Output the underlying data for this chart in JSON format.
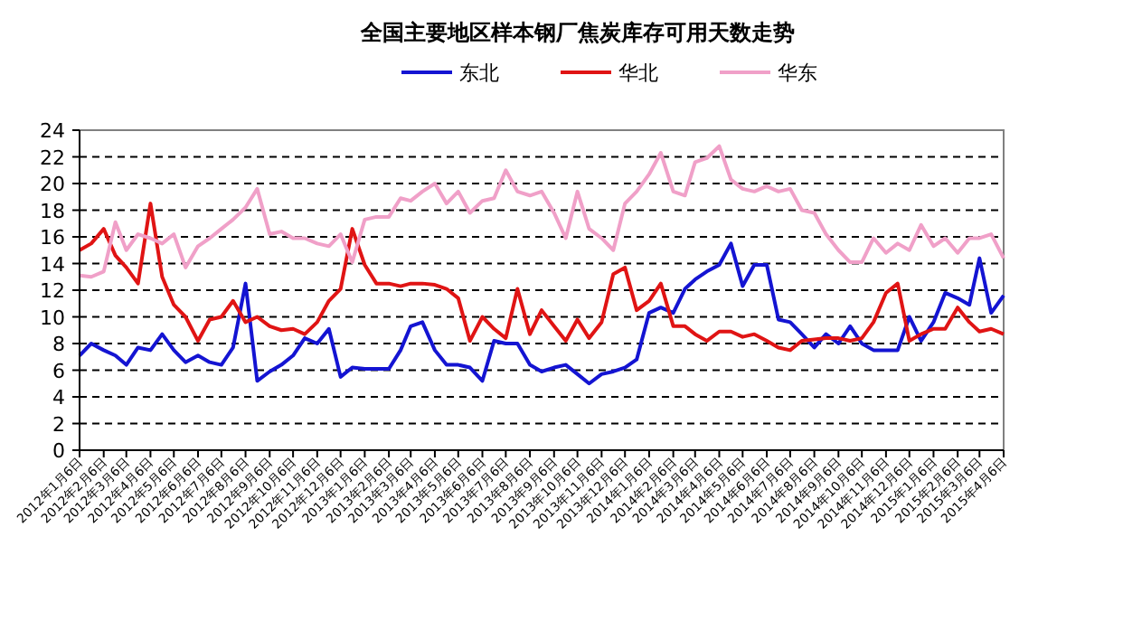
{
  "chart_data": {
    "type": "line",
    "title": "全国主要地区样本钢厂焦炭库存可用天数走势",
    "x": [
      "2012-01-06",
      "2012-01-21",
      "2012-02-06",
      "2012-02-21",
      "2012-03-06",
      "2012-03-21",
      "2012-04-06",
      "2012-04-21",
      "2012-05-06",
      "2012-05-21",
      "2012-06-06",
      "2012-06-21",
      "2012-07-06",
      "2012-07-21",
      "2012-08-06",
      "2012-08-21",
      "2012-09-06",
      "2012-09-21",
      "2012-10-06",
      "2012-10-21",
      "2012-11-06",
      "2012-11-21",
      "2012-12-06",
      "2012-12-21",
      "2013-01-06",
      "2013-01-21",
      "2013-02-06",
      "2013-02-21",
      "2013-03-06",
      "2013-03-21",
      "2013-04-06",
      "2013-04-21",
      "2013-05-06",
      "2013-05-21",
      "2013-06-06",
      "2013-06-21",
      "2013-07-06",
      "2013-07-21",
      "2013-08-06",
      "2013-08-21",
      "2013-09-06",
      "2013-09-21",
      "2013-10-06",
      "2013-10-21",
      "2013-11-06",
      "2013-11-21",
      "2013-12-06",
      "2013-12-21",
      "2014-01-06",
      "2014-01-21",
      "2014-02-06",
      "2014-02-21",
      "2014-03-06",
      "2014-03-21",
      "2014-04-06",
      "2014-04-21",
      "2014-05-06",
      "2014-05-21",
      "2014-06-06",
      "2014-06-21",
      "2014-07-06",
      "2014-07-21",
      "2014-08-06",
      "2014-08-21",
      "2014-09-06",
      "2014-09-21",
      "2014-10-06",
      "2014-10-21",
      "2014-11-06",
      "2014-11-21",
      "2014-12-06",
      "2014-12-21",
      "2015-01-06",
      "2015-01-21",
      "2015-02-06",
      "2015-02-21",
      "2015-03-06",
      "2015-03-21",
      "2015-04-06"
    ],
    "series": [
      {
        "name": "东北",
        "color": "#1414d2",
        "values": [
          7.1,
          8.0,
          7.5,
          7.1,
          6.4,
          7.7,
          7.5,
          8.7,
          7.5,
          6.6,
          7.1,
          6.6,
          6.4,
          7.7,
          12.5,
          5.2,
          5.9,
          6.4,
          7.1,
          8.4,
          8.0,
          9.1,
          5.5,
          6.2,
          6.1,
          6.1,
          6.1,
          7.5,
          9.3,
          9.6,
          7.5,
          6.4,
          6.4,
          6.2,
          5.2,
          8.2,
          8.0,
          8.0,
          6.4,
          5.9,
          6.2,
          6.4,
          5.7,
          5.0,
          5.7,
          5.9,
          6.2,
          6.8,
          10.3,
          10.7,
          10.3,
          12.1,
          12.8,
          13.4,
          13.9,
          15.5,
          12.3,
          13.9,
          13.9,
          9.8,
          9.6,
          8.7,
          7.7,
          8.7,
          8.0,
          9.3,
          8.0,
          7.5,
          7.5,
          7.5,
          10.0,
          8.2,
          9.6,
          11.8,
          11.4,
          10.9,
          14.4,
          10.3,
          11.6
        ]
      },
      {
        "name": "华北",
        "color": "#e01414",
        "values": [
          15.0,
          15.5,
          16.6,
          14.6,
          13.7,
          12.5,
          18.5,
          13.0,
          10.9,
          10.0,
          8.2,
          9.8,
          10.0,
          11.2,
          9.6,
          10.0,
          9.3,
          9.0,
          9.1,
          8.7,
          9.6,
          11.2,
          12.1,
          16.6,
          13.9,
          12.5,
          12.5,
          12.3,
          12.5,
          12.5,
          12.4,
          12.1,
          11.4,
          8.2,
          10.0,
          9.1,
          8.4,
          12.1,
          8.7,
          10.5,
          9.3,
          8.2,
          9.8,
          8.4,
          9.6,
          13.2,
          13.7,
          10.5,
          11.2,
          12.5,
          9.3,
          9.3,
          8.7,
          8.2,
          8.9,
          8.9,
          8.5,
          8.7,
          8.2,
          7.7,
          7.5,
          8.2,
          8.3,
          8.4,
          8.4,
          8.2,
          8.4,
          9.6,
          11.8,
          12.5,
          8.2,
          8.7,
          9.1,
          9.1,
          10.7,
          9.6,
          8.9,
          9.1,
          8.7
        ]
      },
      {
        "name": "华东",
        "color": "#f0a0c8",
        "values": [
          13.1,
          13.0,
          13.4,
          17.1,
          15.0,
          16.2,
          15.9,
          15.5,
          16.2,
          13.7,
          15.3,
          15.9,
          16.6,
          17.3,
          18.2,
          19.6,
          16.2,
          16.4,
          15.9,
          15.9,
          15.5,
          15.3,
          16.2,
          14.1,
          17.3,
          17.5,
          17.5,
          18.9,
          18.7,
          19.4,
          20.0,
          18.5,
          19.4,
          17.8,
          18.7,
          18.9,
          21.0,
          19.4,
          19.1,
          19.4,
          17.8,
          15.9,
          19.4,
          16.6,
          15.9,
          15.0,
          18.5,
          19.4,
          20.7,
          22.3,
          19.4,
          19.1,
          21.6,
          21.9,
          22.8,
          20.3,
          19.6,
          19.4,
          19.8,
          19.4,
          19.6,
          18.0,
          17.8,
          16.2,
          15.0,
          14.1,
          14.1,
          15.9,
          14.8,
          15.5,
          15.0,
          16.9,
          15.3,
          15.9,
          14.8,
          15.9,
          15.9,
          16.2,
          14.4
        ]
      }
    ],
    "xlim": [
      "2012-01-06",
      "2015-04-06"
    ],
    "xticks": [
      {
        "value": "2012-01-06",
        "label": "2012年1月6日"
      },
      {
        "value": "2012-02-06",
        "label": "2012年2月6日"
      },
      {
        "value": "2012-03-06",
        "label": "2012年3月6日"
      },
      {
        "value": "2012-04-06",
        "label": "2012年4月6日"
      },
      {
        "value": "2012-05-06",
        "label": "2012年5月6日"
      },
      {
        "value": "2012-06-06",
        "label": "2012年6月6日"
      },
      {
        "value": "2012-07-06",
        "label": "2012年7月6日"
      },
      {
        "value": "2012-08-06",
        "label": "2012年8月6日"
      },
      {
        "value": "2012-09-06",
        "label": "2012年9月6日"
      },
      {
        "value": "2012-10-06",
        "label": "2012年10月6日"
      },
      {
        "value": "2012-11-06",
        "label": "2012年11月6日"
      },
      {
        "value": "2012-12-06",
        "label": "2012年12月6日"
      },
      {
        "value": "2013-01-06",
        "label": "2013年1月6日"
      },
      {
        "value": "2013-02-06",
        "label": "2013年2月6日"
      },
      {
        "value": "2013-03-06",
        "label": "2013年3月6日"
      },
      {
        "value": "2013-04-06",
        "label": "2013年4月6日"
      },
      {
        "value": "2013-05-06",
        "label": "2013年5月6日"
      },
      {
        "value": "2013-06-06",
        "label": "2013年6月6日"
      },
      {
        "value": "2013-07-06",
        "label": "2013年7月6日"
      },
      {
        "value": "2013-08-06",
        "label": "2013年8月6日"
      },
      {
        "value": "2013-09-06",
        "label": "2013年9月6日"
      },
      {
        "value": "2013-10-06",
        "label": "2013年10月6日"
      },
      {
        "value": "2013-11-06",
        "label": "2013年11月6日"
      },
      {
        "value": "2013-12-06",
        "label": "2013年12月6日"
      },
      {
        "value": "2014-01-06",
        "label": "2014年1月6日"
      },
      {
        "value": "2014-02-06",
        "label": "2014年2月6日"
      },
      {
        "value": "2014-03-06",
        "label": "2014年3月6日"
      },
      {
        "value": "2014-04-06",
        "label": "2014年4月6日"
      },
      {
        "value": "2014-05-06",
        "label": "2014年5月6日"
      },
      {
        "value": "2014-06-06",
        "label": "2014年6月6日"
      },
      {
        "value": "2014-07-06",
        "label": "2014年7月6日"
      },
      {
        "value": "2014-08-06",
        "label": "2014年8月6日"
      },
      {
        "value": "2014-09-06",
        "label": "2014年9月6日"
      },
      {
        "value": "2014-10-06",
        "label": "2014年10月6日"
      },
      {
        "value": "2014-11-06",
        "label": "2014年11月6日"
      },
      {
        "value": "2014-12-06",
        "label": "2014年12月6日"
      },
      {
        "value": "2015-01-06",
        "label": "2015年1月6日"
      },
      {
        "value": "2015-02-06",
        "label": "2015年2月6日"
      },
      {
        "value": "2015-03-06",
        "label": "2015年3月6日"
      },
      {
        "value": "2015-04-06",
        "label": "2015年4月6日"
      }
    ],
    "ylim": [
      0,
      24
    ],
    "yticks": [
      0,
      2,
      4,
      6,
      8,
      10,
      12,
      14,
      16,
      18,
      20,
      22,
      24
    ],
    "grid": "y",
    "legend": "top",
    "marker": "none",
    "line_style": "solid"
  }
}
